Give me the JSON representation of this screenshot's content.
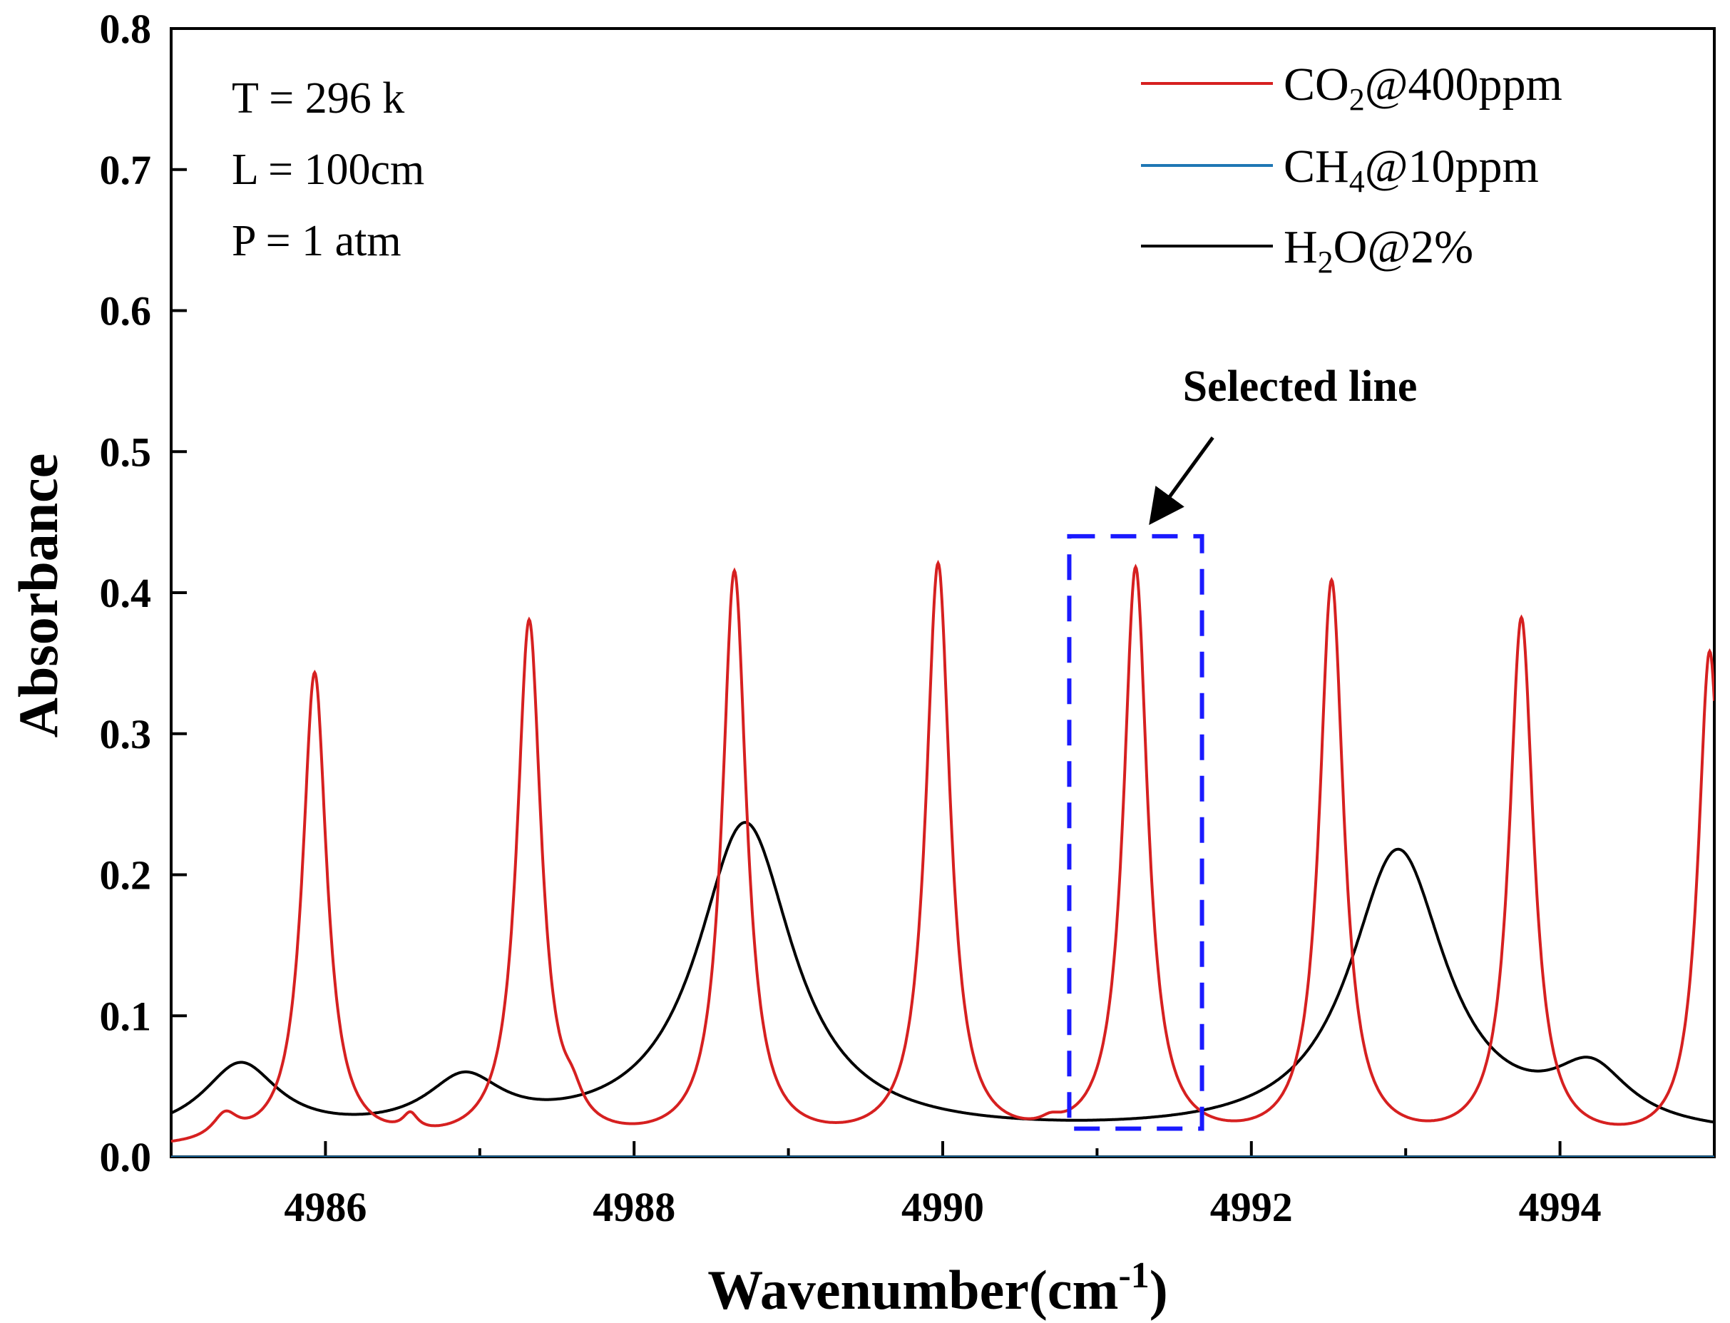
{
  "chart_data": {
    "type": "line",
    "title": "",
    "xlabel": "Wavenumber(cm",
    "xlabel_sup": "-1",
    "xlabel_close": ")",
    "ylabel": "Absorbance",
    "xlim": [
      4985,
      4995
    ],
    "ylim": [
      0.0,
      0.8
    ],
    "x_ticks": [
      4986,
      4988,
      4990,
      4992,
      4994
    ],
    "x_tick_labels": [
      "4986",
      "4988",
      "4990",
      "4992",
      "4994"
    ],
    "y_ticks": [
      0.0,
      0.1,
      0.2,
      0.3,
      0.4,
      0.5,
      0.6,
      0.7,
      0.8
    ],
    "y_tick_labels": [
      "0.0",
      "0.1",
      "0.2",
      "0.3",
      "0.4",
      "0.5",
      "0.6",
      "0.7",
      "0.8"
    ],
    "grid": false,
    "conditions": [
      "T = 296 k",
      "L = 100cm",
      "P = 1 atm"
    ],
    "legend_position": "top-right",
    "series": [
      {
        "name": "CO2@400ppm",
        "legend_main": "CO",
        "legend_sub": "2",
        "legend_rest": "@400ppm",
        "color": "#d62020",
        "baseline": 0.005,
        "peaks": [
          {
            "x": 4985.35,
            "y": 0.017,
            "w": 0.1
          },
          {
            "x": 4985.93,
            "y": 0.335,
            "w": 0.095
          },
          {
            "x": 4986.55,
            "y": 0.012,
            "w": 0.06
          },
          {
            "x": 4987.32,
            "y": 0.37,
            "w": 0.095
          },
          {
            "x": 4987.6,
            "y": 0.015,
            "w": 0.08
          },
          {
            "x": 4988.65,
            "y": 0.405,
            "w": 0.095
          },
          {
            "x": 4989.97,
            "y": 0.41,
            "w": 0.095
          },
          {
            "x": 4990.7,
            "y": 0.005,
            "w": 0.08
          },
          {
            "x": 4991.25,
            "y": 0.407,
            "w": 0.095
          },
          {
            "x": 4992.52,
            "y": 0.398,
            "w": 0.095
          },
          {
            "x": 4993.75,
            "y": 0.372,
            "w": 0.095
          },
          {
            "x": 4994.97,
            "y": 0.35,
            "w": 0.09
          }
        ]
      },
      {
        "name": "CH4@10ppm",
        "legend_main": "CH",
        "legend_sub": "4",
        "legend_rest": "@10ppm",
        "color": "#1f77b4",
        "constant": 0.0
      },
      {
        "name": "H2O@2%",
        "legend_main": "H",
        "legend_sub": "2",
        "legend_rest": "O@2%",
        "color": "#000000",
        "baseline": 0.012,
        "peaks": [
          {
            "x": 4985.45,
            "y": 0.05,
            "w": 0.3
          },
          {
            "x": 4986.9,
            "y": 0.036,
            "w": 0.3
          },
          {
            "x": 4988.72,
            "y": 0.222,
            "w": 0.38
          },
          {
            "x": 4992.95,
            "y": 0.202,
            "w": 0.38
          },
          {
            "x": 4994.2,
            "y": 0.04,
            "w": 0.3
          }
        ]
      }
    ],
    "annotation": {
      "text": "Selected line",
      "box_x": [
        4990.82,
        4991.68
      ],
      "box_y": [
        0.02,
        0.44
      ],
      "box_color": "#1a1aff",
      "arrow_from": [
        4991.75,
        0.51
      ],
      "arrow_to": [
        4991.35,
        0.45
      ]
    }
  }
}
